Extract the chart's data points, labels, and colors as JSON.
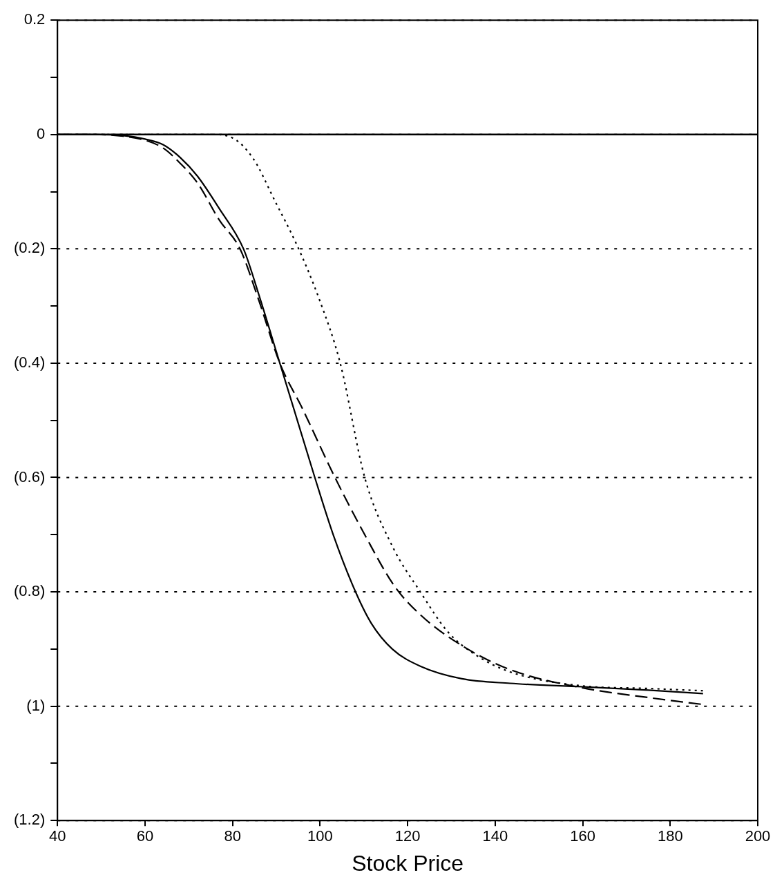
{
  "chart_data": {
    "type": "line",
    "xlabel": "Stock Price",
    "xlim": [
      40,
      200
    ],
    "xticks": [
      40,
      60,
      80,
      100,
      120,
      140,
      160,
      180,
      200
    ],
    "ylim": [
      -1.2,
      0.2
    ],
    "yticks": [
      {
        "value": 0.2,
        "label": "0.2"
      },
      {
        "value": 0.1,
        "label": null
      },
      {
        "value": 0,
        "label": "0"
      },
      {
        "value": -0.1,
        "label": null
      },
      {
        "value": -0.2,
        "label": "(0.2)"
      },
      {
        "value": -0.3,
        "label": null
      },
      {
        "value": -0.4,
        "label": "(0.4)"
      },
      {
        "value": -0.5,
        "label": null
      },
      {
        "value": -0.6,
        "label": "(0.6)"
      },
      {
        "value": -0.7,
        "label": null
      },
      {
        "value": -0.8,
        "label": "(0.8)"
      },
      {
        "value": -0.9,
        "label": null
      },
      {
        "value": -1,
        "label": "(1)"
      },
      {
        "value": -1.1,
        "label": null
      },
      {
        "value": -1.2,
        "label": "(1.2)"
      }
    ],
    "grid": "y",
    "marker": "none",
    "ref_lines": [
      {
        "axis": "y",
        "value": 0,
        "color": "#000000",
        "line_style": "solid"
      }
    ],
    "series": [
      {
        "color": "#000000",
        "line_style": "solid",
        "x": [
          40,
          48,
          55,
          60,
          64.2,
          68,
          72,
          77,
          82.5,
          86,
          90.8,
          94,
          98.8,
          103,
          108.1,
          111.7,
          116.5,
          122.9,
          132.4,
          143.4,
          160,
          175,
          187.5
        ],
        "values": [
          0,
          0,
          -0.002,
          -0.008,
          -0.018,
          -0.04,
          -0.073,
          -0.13,
          -0.2,
          -0.28,
          -0.4,
          -0.48,
          -0.6,
          -0.7,
          -0.8,
          -0.855,
          -0.9,
          -0.93,
          -0.952,
          -0.96,
          -0.966,
          -0.972,
          -0.978
        ]
      },
      {
        "color": "#000000",
        "line_style": "dashed",
        "x": [
          40,
          48,
          55,
          60,
          64.2,
          68,
          72,
          77,
          81.7,
          86,
          90.8,
          96,
          103.4,
          110.2,
          117,
          122.9,
          132.4,
          143.4,
          159.3,
          175.1,
          187.5
        ],
        "values": [
          0,
          0,
          -0.003,
          -0.01,
          -0.024,
          -0.05,
          -0.085,
          -0.15,
          -0.2,
          -0.29,
          -0.4,
          -0.48,
          -0.6,
          -0.7,
          -0.79,
          -0.84,
          -0.894,
          -0.936,
          -0.967,
          -0.985,
          -0.997
        ]
      },
      {
        "color": "#000000",
        "line_style": "dotted",
        "x": [
          40,
          75.3,
          80,
          84.8,
          89.6,
          95.1,
          99.9,
          104.6,
          110.2,
          116.5,
          122.9,
          129.2,
          135.5,
          143.4,
          159.3,
          175,
          187.5
        ],
        "values": [
          0,
          0,
          -0.006,
          -0.043,
          -0.115,
          -0.2,
          -0.29,
          -0.4,
          -0.6,
          -0.72,
          -0.8,
          -0.87,
          -0.91,
          -0.94,
          -0.964,
          -0.969,
          -0.973
        ]
      }
    ]
  }
}
